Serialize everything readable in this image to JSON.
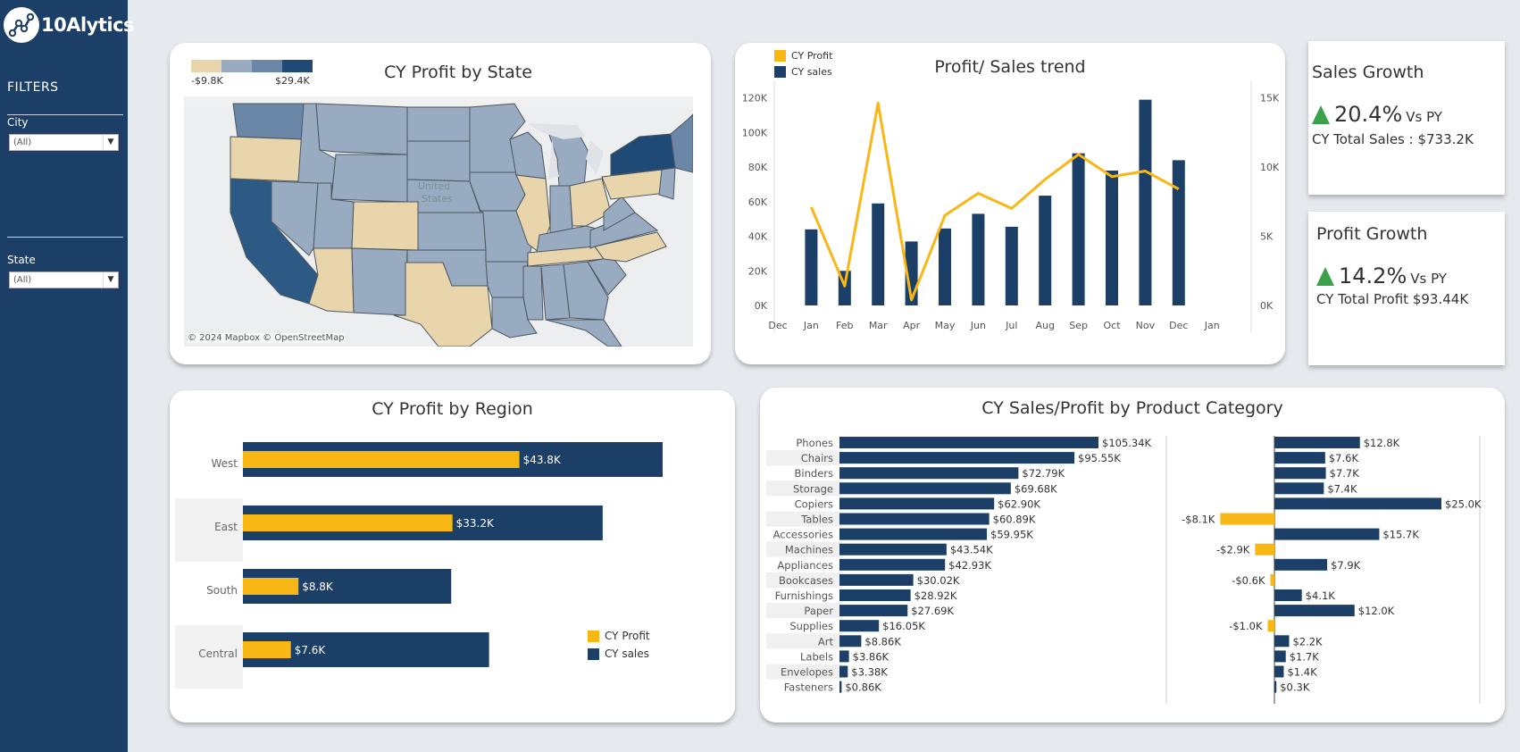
{
  "brand": {
    "name": "10Alytics"
  },
  "filters": {
    "title": "FILTERS",
    "city": {
      "label": "City",
      "value": "(All)"
    },
    "state": {
      "label": "State",
      "value": "(All)"
    }
  },
  "map": {
    "title": "CY Profit by State",
    "legend_min": "-$9.8K",
    "legend_max": "$29.4K",
    "attribution": "© 2024 Mapbox © OpenStreetMap",
    "country_label": "United\nStates",
    "colors": {
      "negative": "#e8d5ab",
      "low": "#98abc0",
      "mid": "#6b87a8",
      "high": "#1f4a75"
    }
  },
  "trend": {
    "title": "Profit/ Sales trend",
    "legend": [
      "CY Profit",
      "CY sales"
    ],
    "x_labels": [
      "Dec",
      "Jan",
      "Feb",
      "Mar",
      "Apr",
      "May",
      "Jun",
      "Jul",
      "Aug",
      "Sep",
      "Oct",
      "Nov",
      "Dec",
      "Jan"
    ],
    "left_axis_ticks": [
      "120K",
      "100K",
      "80K",
      "60K",
      "40K",
      "20K",
      "0K"
    ],
    "right_axis_ticks": [
      "15K",
      "10K",
      "5K",
      "0K"
    ]
  },
  "kpis": {
    "sales": {
      "title": "Sales Growth",
      "value": "20.4%",
      "vs": "Vs PY",
      "sub": "CY Total Sales : $733.2K"
    },
    "profit": {
      "title": "Profit Growth",
      "value": "14.2%",
      "vs": "Vs PY",
      "sub": "CY Total Profit $93.44K"
    }
  },
  "region": {
    "title": "CY Profit by Region",
    "legend": [
      "CY Profit",
      "CY sales"
    ]
  },
  "category": {
    "title": "CY Sales/Profit by Product Category"
  },
  "colors": {
    "navy": "#1b3f66",
    "gold": "#f9b716",
    "accent_up": "#3aa14b"
  },
  "chart_data": [
    {
      "type": "bar",
      "title": "Profit/ Sales trend",
      "categories": [
        "Jan",
        "Feb",
        "Mar",
        "Apr",
        "May",
        "Jun",
        "Jul",
        "Aug",
        "Sep",
        "Oct",
        "Nov",
        "Dec"
      ],
      "series": [
        {
          "name": "CY sales",
          "values": [
            44000,
            20000,
            59000,
            37000,
            44500,
            53000,
            45500,
            63500,
            88000,
            78000,
            119000,
            84000
          ],
          "axis": "left"
        },
        {
          "name": "CY Profit",
          "type": "line",
          "values": [
            7100,
            1400,
            14600,
            400,
            6500,
            8100,
            7000,
            9100,
            10900,
            9300,
            9700,
            8400
          ],
          "axis": "right"
        }
      ],
      "ylim_left": [
        0,
        125000
      ],
      "ylim_right": [
        0,
        15600
      ]
    },
    {
      "type": "bar",
      "title": "CY Profit by Region",
      "categories": [
        "West",
        "East",
        "South",
        "Central"
      ],
      "series": [
        {
          "name": "CY sales",
          "values": [
            66500,
            57000,
            33000,
            39000
          ]
        },
        {
          "name": "CY Profit",
          "values": [
            43800,
            33200,
            8800,
            7600
          ],
          "labels": [
            "$43.8K",
            "$33.2K",
            "$8.8K",
            "$7.6K"
          ]
        }
      ]
    },
    {
      "type": "bar",
      "title": "CY Sales/Profit by Product Category",
      "categories": [
        "Phones",
        "Chairs",
        "Binders",
        "Storage",
        "Copiers",
        "Tables",
        "Accessories",
        "Machines",
        "Appliances",
        "Bookcases",
        "Furnishings",
        "Paper",
        "Supplies",
        "Art",
        "Labels",
        "Envelopes",
        "Fasteners"
      ],
      "series": [
        {
          "name": "CY sales",
          "values": [
            105.34,
            95.55,
            72.79,
            69.68,
            62.9,
            60.89,
            59.95,
            43.54,
            42.93,
            30.02,
            28.92,
            27.69,
            16.05,
            8.86,
            3.86,
            3.38,
            0.86
          ],
          "labels": [
            "$105.34K",
            "$95.55K",
            "$72.79K",
            "$69.68K",
            "$62.90K",
            "$60.89K",
            "$59.95K",
            "$43.54K",
            "$42.93K",
            "$30.02K",
            "$28.92K",
            "$27.69K",
            "$16.05K",
            "$8.86K",
            "$3.86K",
            "$3.38K",
            "$0.86K"
          ]
        },
        {
          "name": "CY Profit",
          "values": [
            12.8,
            7.6,
            7.7,
            7.4,
            25.0,
            -8.1,
            15.7,
            -2.9,
            7.9,
            -0.6,
            4.1,
            12.0,
            -1.0,
            2.2,
            1.7,
            1.4,
            0.3
          ],
          "labels": [
            "$12.8K",
            "$7.6K",
            "$7.7K",
            "$7.4K",
            "$25.0K",
            "-$8.1K",
            "$15.7K",
            "-$2.9K",
            "$7.9K",
            "-$0.6K",
            "$4.1K",
            "$12.0K",
            "-$1.0K",
            "$2.2K",
            "$1.7K",
            "$1.4K",
            "$0.3K"
          ]
        }
      ]
    }
  ]
}
